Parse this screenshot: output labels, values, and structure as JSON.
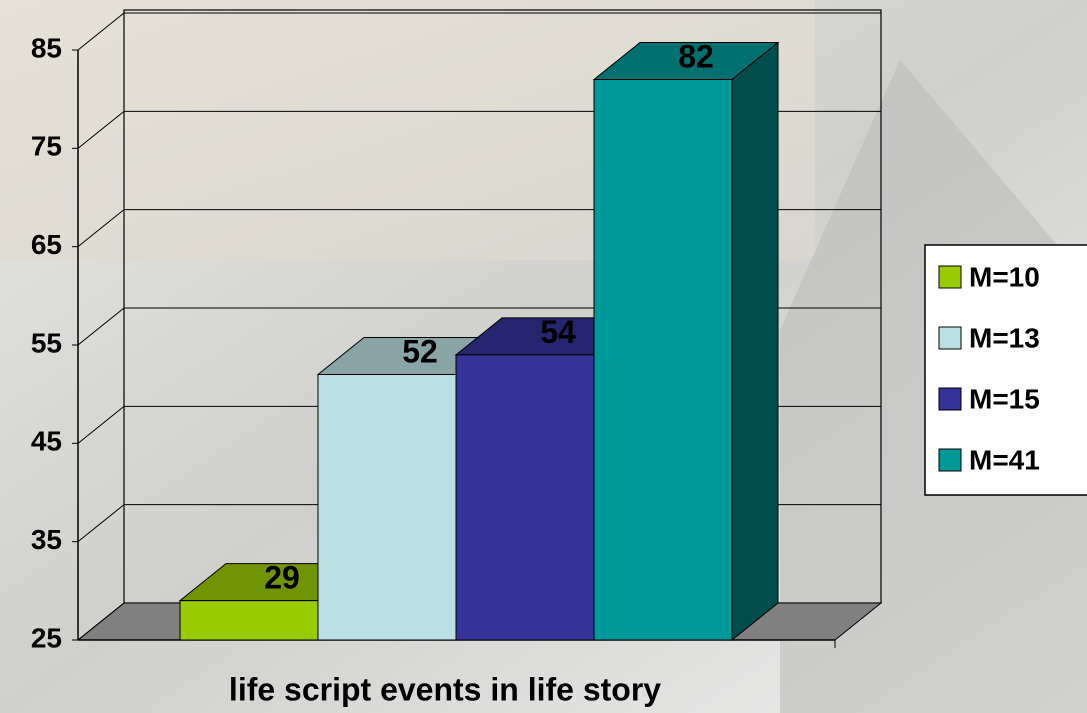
{
  "chart_data": {
    "type": "bar3d",
    "xlabel": "life script events in life story",
    "series": [
      {
        "name": "M=10",
        "color": "#99cc00",
        "values": [
          29
        ]
      },
      {
        "name": "M=13",
        "color": "#bbe0e3",
        "values": [
          52
        ]
      },
      {
        "name": "M=15",
        "color": "#333399",
        "values": [
          54
        ]
      },
      {
        "name": "M=41",
        "color": "#009999",
        "values": [
          82
        ]
      }
    ],
    "ylim": [
      25,
      85
    ],
    "yticks": [
      25,
      35,
      45,
      55,
      65,
      75,
      85
    ],
    "grid": true,
    "legend": "right"
  }
}
